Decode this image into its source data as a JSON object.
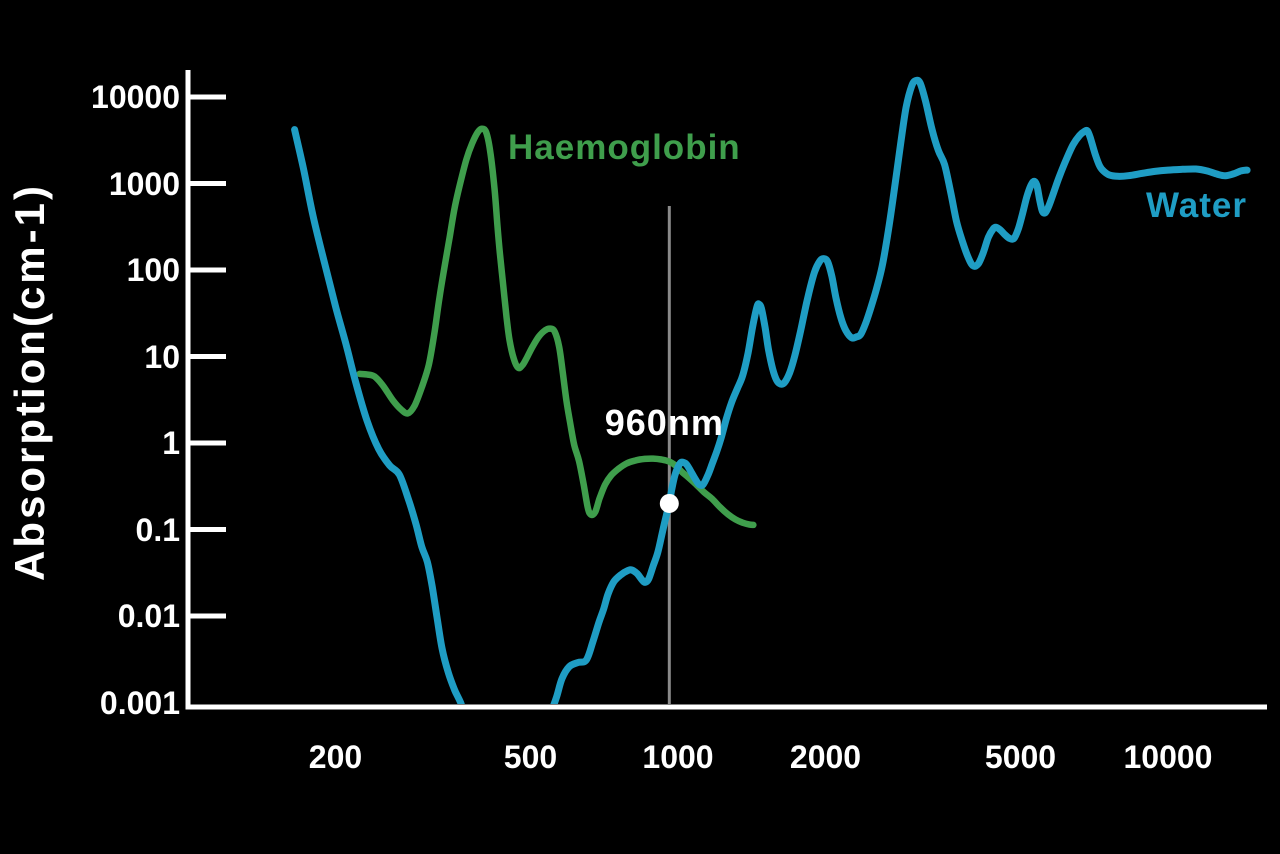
{
  "chart_data": {
    "type": "line",
    "title": "",
    "ylabel": "Absorption(cm-1)",
    "x_scale": "log",
    "y_scale": "log",
    "xlim": [
      100,
      15900
    ],
    "ylim": [
      0.001,
      20000
    ],
    "grid": false,
    "x_tick_values": [
      200,
      500,
      1000,
      2000,
      5000,
      10000
    ],
    "x_tick_labels": [
      "200",
      "500",
      "1000",
      "2000",
      "5000",
      "10000"
    ],
    "y_tick_values": [
      10000,
      1000,
      100,
      10,
      1,
      0.1,
      0.01,
      0.001
    ],
    "y_tick_labels": [
      "10000",
      "1000",
      "100",
      "10",
      "1",
      "0.1",
      "0.01",
      "0.001"
    ],
    "axis_color": "#ffffff",
    "background_color": "#000000",
    "annotation": {
      "label": "960nm",
      "wavelength_nm": 960,
      "value": 0.2,
      "line_color": "#8a8a8a",
      "dot_color": "#ffffff"
    },
    "series": [
      {
        "name": "Haemoglobin",
        "color": "#3f9e4c",
        "stroke_width": 6.5,
        "points": [
          [
            224,
            6.3
          ],
          [
            232,
            6.2
          ],
          [
            240,
            5.9
          ],
          [
            250,
            4.6
          ],
          [
            262,
            3.1
          ],
          [
            272,
            2.45
          ],
          [
            281,
            2.2
          ],
          [
            290,
            2.7
          ],
          [
            300,
            4.4
          ],
          [
            310,
            8
          ],
          [
            318,
            18
          ],
          [
            326,
            48
          ],
          [
            334,
            110
          ],
          [
            342,
            240
          ],
          [
            350,
            520
          ],
          [
            360,
            1050
          ],
          [
            370,
            1900
          ],
          [
            380,
            2900
          ],
          [
            390,
            3900
          ],
          [
            398,
            4300
          ],
          [
            406,
            3900
          ],
          [
            414,
            2300
          ],
          [
            422,
            900
          ],
          [
            428,
            330
          ],
          [
            433,
            155
          ],
          [
            440,
            65
          ],
          [
            447,
            28
          ],
          [
            453,
            15.5
          ],
          [
            462,
            9.5
          ],
          [
            472,
            7.4
          ],
          [
            482,
            8.0
          ],
          [
            492,
            9.8
          ],
          [
            505,
            13
          ],
          [
            520,
            17
          ],
          [
            535,
            20
          ],
          [
            548,
            21
          ],
          [
            560,
            19.5
          ],
          [
            572,
            13
          ],
          [
            582,
            6.5
          ],
          [
            592,
            3.1
          ],
          [
            602,
            1.75
          ],
          [
            614,
            0.95
          ],
          [
            628,
            0.62
          ],
          [
            642,
            0.33
          ],
          [
            655,
            0.175
          ],
          [
            665,
            0.148
          ],
          [
            678,
            0.16
          ],
          [
            692,
            0.23
          ],
          [
            710,
            0.33
          ],
          [
            730,
            0.42
          ],
          [
            755,
            0.5
          ],
          [
            785,
            0.58
          ],
          [
            820,
            0.63
          ],
          [
            855,
            0.655
          ],
          [
            890,
            0.66
          ],
          [
            925,
            0.645
          ],
          [
            960,
            0.61
          ],
          [
            990,
            0.545
          ],
          [
            1020,
            0.46
          ],
          [
            1050,
            0.4
          ],
          [
            1090,
            0.33
          ],
          [
            1130,
            0.27
          ],
          [
            1175,
            0.225
          ],
          [
            1220,
            0.18
          ],
          [
            1265,
            0.15
          ],
          [
            1310,
            0.131
          ],
          [
            1355,
            0.12
          ],
          [
            1400,
            0.114
          ],
          [
            1425,
            0.113
          ]
        ]
      },
      {
        "name": "Water",
        "color": "#1f9dc4",
        "stroke_width": 7,
        "points": [
          [
            165,
            4200
          ],
          [
            172,
            1500
          ],
          [
            180,
            420
          ],
          [
            190,
            120
          ],
          [
            200,
            38
          ],
          [
            210,
            14
          ],
          [
            220,
            5
          ],
          [
            232,
            1.8
          ],
          [
            245,
            0.85
          ],
          [
            258,
            0.55
          ],
          [
            270,
            0.43
          ],
          [
            282,
            0.22
          ],
          [
            292,
            0.115
          ],
          [
            300,
            0.063
          ],
          [
            308,
            0.042
          ],
          [
            315,
            0.022
          ],
          [
            322,
            0.01
          ],
          [
            330,
            0.0042
          ],
          [
            340,
            0.0022
          ],
          [
            350,
            0.0014
          ],
          [
            360,
            0.001
          ],
          [
            375,
            0.00055
          ],
          [
            420,
            0.00028
          ],
          [
            480,
            0.00022
          ],
          [
            530,
            0.00045
          ],
          [
            552,
            0.0008
          ],
          [
            565,
            0.00115
          ],
          [
            580,
            0.0019
          ],
          [
            600,
            0.0026
          ],
          [
            625,
            0.0029
          ],
          [
            650,
            0.0031
          ],
          [
            670,
            0.005
          ],
          [
            690,
            0.0085
          ],
          [
            705,
            0.012
          ],
          [
            720,
            0.018
          ],
          [
            740,
            0.025
          ],
          [
            765,
            0.03
          ],
          [
            790,
            0.0335
          ],
          [
            805,
            0.034
          ],
          [
            825,
            0.031
          ],
          [
            845,
            0.026
          ],
          [
            858,
            0.0245
          ],
          [
            872,
            0.027
          ],
          [
            890,
            0.038
          ],
          [
            910,
            0.055
          ],
          [
            930,
            0.095
          ],
          [
            945,
            0.14
          ],
          [
            960,
            0.205
          ],
          [
            972,
            0.3
          ],
          [
            985,
            0.42
          ],
          [
            1000,
            0.53
          ],
          [
            1012,
            0.59
          ],
          [
            1022,
            0.6
          ],
          [
            1040,
            0.57
          ],
          [
            1060,
            0.48
          ],
          [
            1085,
            0.38
          ],
          [
            1105,
            0.33
          ],
          [
            1125,
            0.33
          ],
          [
            1150,
            0.42
          ],
          [
            1175,
            0.58
          ],
          [
            1200,
            0.8
          ],
          [
            1225,
            1.15
          ],
          [
            1255,
            1.9
          ],
          [
            1285,
            2.9
          ],
          [
            1320,
            4.2
          ],
          [
            1355,
            6.0
          ],
          [
            1390,
            11
          ],
          [
            1420,
            22
          ],
          [
            1450,
            38
          ],
          [
            1465,
            40
          ],
          [
            1480,
            36
          ],
          [
            1505,
            22
          ],
          [
            1530,
            12
          ],
          [
            1560,
            7.2
          ],
          [
            1590,
            5.3
          ],
          [
            1620,
            4.8
          ],
          [
            1650,
            5.0
          ],
          [
            1690,
            6.5
          ],
          [
            1730,
            10
          ],
          [
            1780,
            20
          ],
          [
            1840,
            48
          ],
          [
            1900,
            95
          ],
          [
            1950,
            128
          ],
          [
            1985,
            135
          ],
          [
            2020,
            125
          ],
          [
            2060,
            85
          ],
          [
            2100,
            48
          ],
          [
            2150,
            28
          ],
          [
            2200,
            20
          ],
          [
            2260,
            16.5
          ],
          [
            2310,
            16.8
          ],
          [
            2360,
            18
          ],
          [
            2420,
            25
          ],
          [
            2480,
            38
          ],
          [
            2540,
            60
          ],
          [
            2610,
            110
          ],
          [
            2680,
            260
          ],
          [
            2760,
            800
          ],
          [
            2840,
            2600
          ],
          [
            2920,
            7500
          ],
          [
            3000,
            13500
          ],
          [
            3060,
            15500
          ],
          [
            3120,
            14500
          ],
          [
            3200,
            9000
          ],
          [
            3300,
            4200
          ],
          [
            3400,
            2400
          ],
          [
            3500,
            1650
          ],
          [
            3600,
            800
          ],
          [
            3700,
            370
          ],
          [
            3800,
            220
          ],
          [
            3900,
            145
          ],
          [
            4000,
            112
          ],
          [
            4100,
            118
          ],
          [
            4200,
            160
          ],
          [
            4300,
            240
          ],
          [
            4400,
            300
          ],
          [
            4460,
            312
          ],
          [
            4550,
            290
          ],
          [
            4650,
            255
          ],
          [
            4750,
            232
          ],
          [
            4850,
            232
          ],
          [
            4950,
            300
          ],
          [
            5050,
            450
          ],
          [
            5150,
            700
          ],
          [
            5250,
            950
          ],
          [
            5330,
            1060
          ],
          [
            5400,
            950
          ],
          [
            5470,
            650
          ],
          [
            5540,
            480
          ],
          [
            5620,
            460
          ],
          [
            5720,
            560
          ],
          [
            5850,
            800
          ],
          [
            6000,
            1200
          ],
          [
            6200,
            1900
          ],
          [
            6400,
            2800
          ],
          [
            6600,
            3600
          ],
          [
            6750,
            4000
          ],
          [
            6850,
            4050
          ],
          [
            6950,
            3300
          ],
          [
            7100,
            2200
          ],
          [
            7250,
            1600
          ],
          [
            7400,
            1380
          ],
          [
            7600,
            1250
          ],
          [
            7900,
            1210
          ],
          [
            8300,
            1230
          ],
          [
            8800,
            1300
          ],
          [
            9400,
            1380
          ],
          [
            10000,
            1430
          ],
          [
            10700,
            1460
          ],
          [
            11400,
            1470
          ],
          [
            12000,
            1400
          ],
          [
            12600,
            1280
          ],
          [
            13100,
            1230
          ],
          [
            13600,
            1290
          ],
          [
            14100,
            1400
          ],
          [
            14500,
            1430
          ]
        ]
      }
    ]
  }
}
